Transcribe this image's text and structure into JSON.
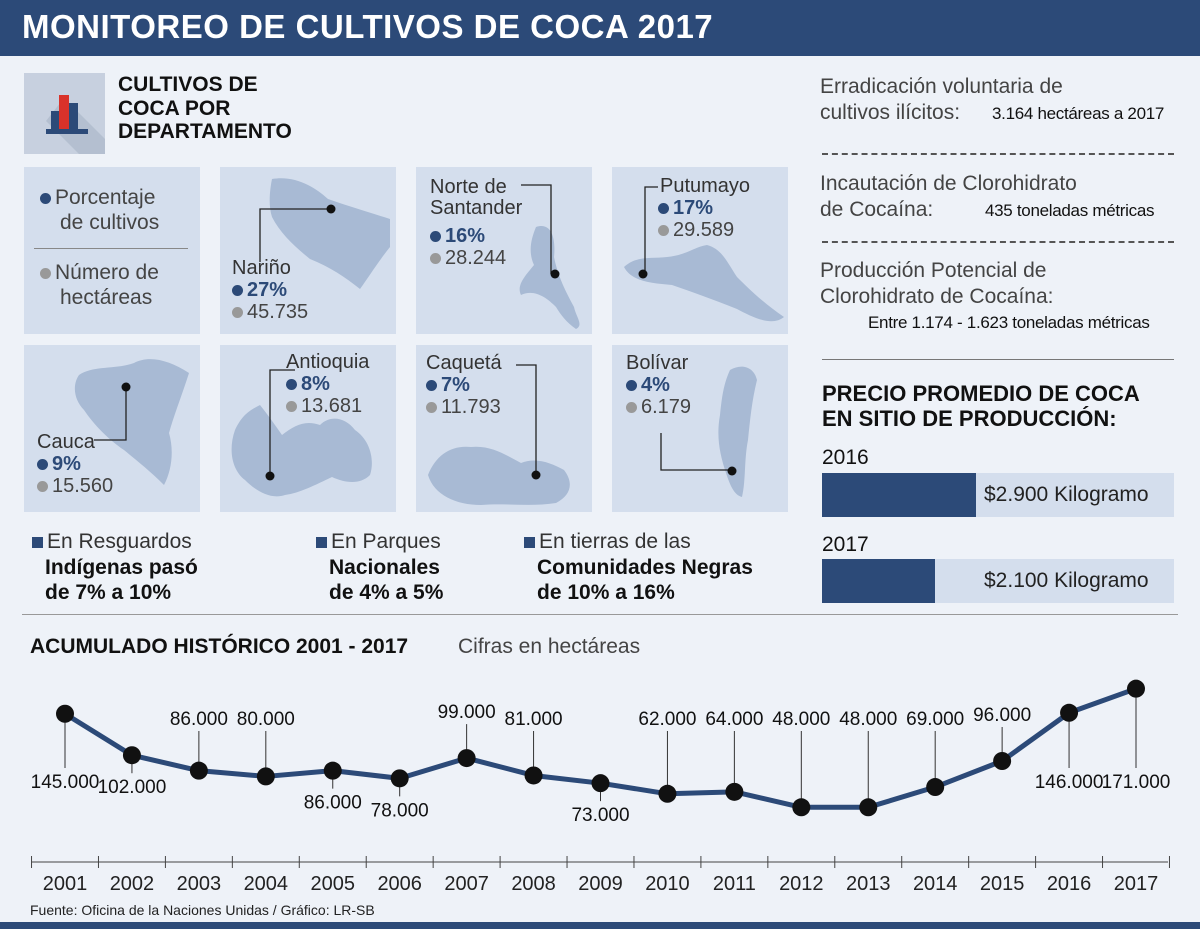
{
  "title": "MONITOREO DE CULTIVOS DE COCA 2017",
  "dept_section": {
    "title_lines": [
      "CULTIVOS DE",
      "COCA POR",
      "DEPARTAMENTO"
    ],
    "legend": {
      "percent_lines": [
        "Porcentaje",
        "de cultivos"
      ],
      "hectares_lines": [
        "Número de",
        "hectáreas"
      ]
    },
    "departments": [
      {
        "name": "Nariño",
        "percent": "27%",
        "hectares": "45.735"
      },
      {
        "name_lines": [
          "Norte de",
          "Santander"
        ],
        "percent": "16%",
        "hectares": "28.244"
      },
      {
        "name": "Putumayo",
        "percent": "17%",
        "hectares": "29.589"
      },
      {
        "name": "Cauca",
        "percent": "9%",
        "hectares": "15.560"
      },
      {
        "name": "Antioquia",
        "percent": "8%",
        "hectares": "13.681"
      },
      {
        "name": "Caquetá",
        "percent": "7%",
        "hectares": "11.793"
      },
      {
        "name": "Bolívar",
        "percent": "4%",
        "hectares": "6.179"
      }
    ]
  },
  "notes": [
    {
      "lead": "En Resguardos",
      "bold_lines": [
        "Indígenas pasó",
        "de 7% a 10%"
      ]
    },
    {
      "lead": "En Parques",
      "bold_lines": [
        "Nacionales",
        "de 4% a 5%"
      ]
    },
    {
      "lead": "En tierras de las",
      "bold_lines": [
        "Comunidades Negras",
        "de 10% a 16%"
      ]
    }
  ],
  "facts": [
    {
      "label_lines": [
        "Erradicación voluntaria de",
        "cultivos ilícitos:"
      ],
      "value": "3.164 hectáreas a 2017"
    },
    {
      "label_lines": [
        "Incautación de Clorohidrato",
        "de Cocaína:"
      ],
      "value": "435 toneladas métricas"
    },
    {
      "label_lines": [
        "Producción Potencial de",
        "Clorohidrato de Cocaína:"
      ],
      "value": "Entre 1.174 - 1.623 toneladas métricas"
    }
  ],
  "price": {
    "title_lines": [
      "PRECIO PROMEDIO DE COCA",
      "EN SITIO DE PRODUCCIÓN:"
    ],
    "rows": [
      {
        "year": "2016",
        "label": "$2.900 Kilogramo",
        "value": 2900
      },
      {
        "year": "2017",
        "label": "$2.100 Kilogramo",
        "value": 2100
      }
    ]
  },
  "chart_data": {
    "type": "line",
    "title": "ACUMULADO HISTÓRICO 2001 - 2017",
    "subtitle": "Cifras en hectáreas",
    "x": [
      "2001",
      "2002",
      "2003",
      "2004",
      "2005",
      "2006",
      "2007",
      "2008",
      "2009",
      "2010",
      "2011",
      "2012",
      "2013",
      "2014",
      "2015",
      "2016",
      "2017"
    ],
    "values": [
      145000,
      102000,
      86000,
      80000,
      86000,
      78000,
      99000,
      81000,
      73000,
      62000,
      64000,
      48000,
      48000,
      69000,
      96000,
      146000,
      171000
    ],
    "labels": [
      "145.000",
      "102.000",
      "86.000",
      "80.000",
      "86.000",
      "78.000",
      "99.000",
      "81.000",
      "73.000",
      "62.000",
      "64.000",
      "48.000",
      "48.000",
      "69.000",
      "96.000",
      "146.000",
      "171.000"
    ],
    "label_position": [
      "below",
      "below",
      "above",
      "above",
      "below",
      "below",
      "above",
      "above",
      "below",
      "above",
      "above",
      "above",
      "above",
      "above",
      "above",
      "below",
      "below"
    ],
    "ylim": [
      40000,
      180000
    ],
    "grid": false,
    "colors": {
      "line": "#2c4a78",
      "marker": "#111111"
    }
  },
  "source": "Fuente:  Oficina de la Naciones Unidas  / Gráfico: LR-SB"
}
